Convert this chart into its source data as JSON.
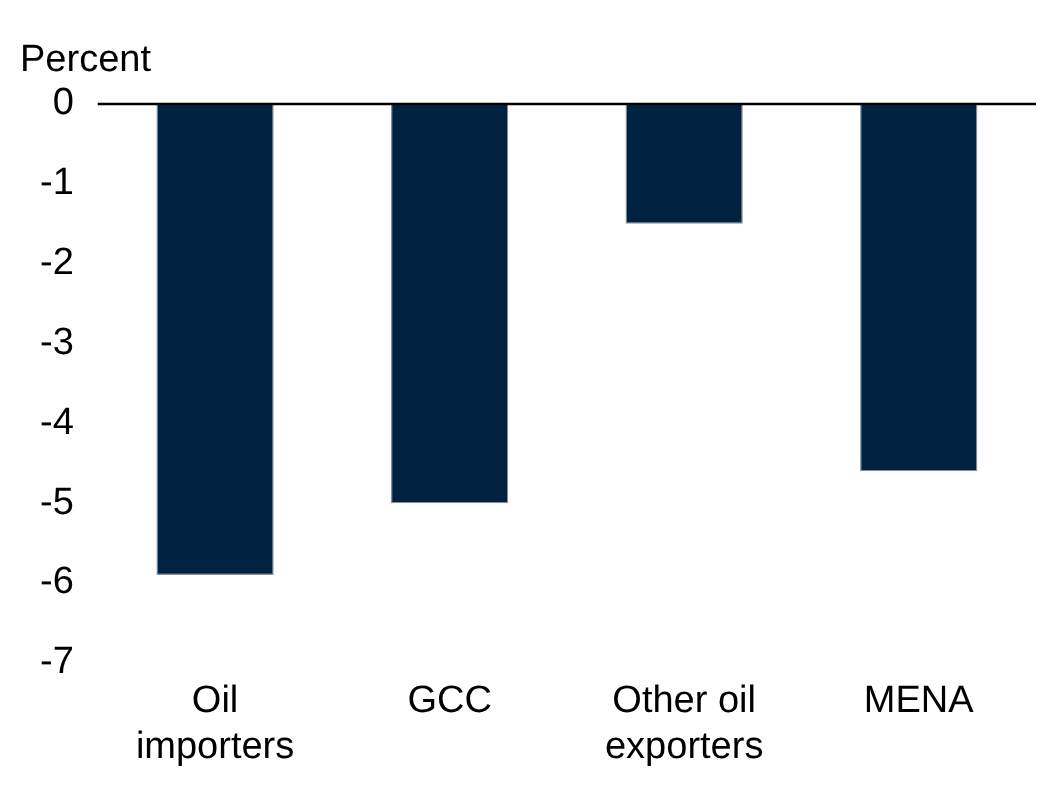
{
  "chart_data": {
    "type": "bar",
    "ylabel": "Percent",
    "categories": [
      "Oil importers",
      "GCC",
      "Other oil exporters",
      "MENA"
    ],
    "values": [
      -5.9,
      -5.0,
      -1.5,
      -4.6
    ],
    "color": "#002140",
    "ylim": [
      -7,
      0
    ],
    "yticks": [
      0,
      -1,
      -2,
      -3,
      -4,
      -5,
      -6,
      -7
    ],
    "grid": false,
    "legend": false
  }
}
